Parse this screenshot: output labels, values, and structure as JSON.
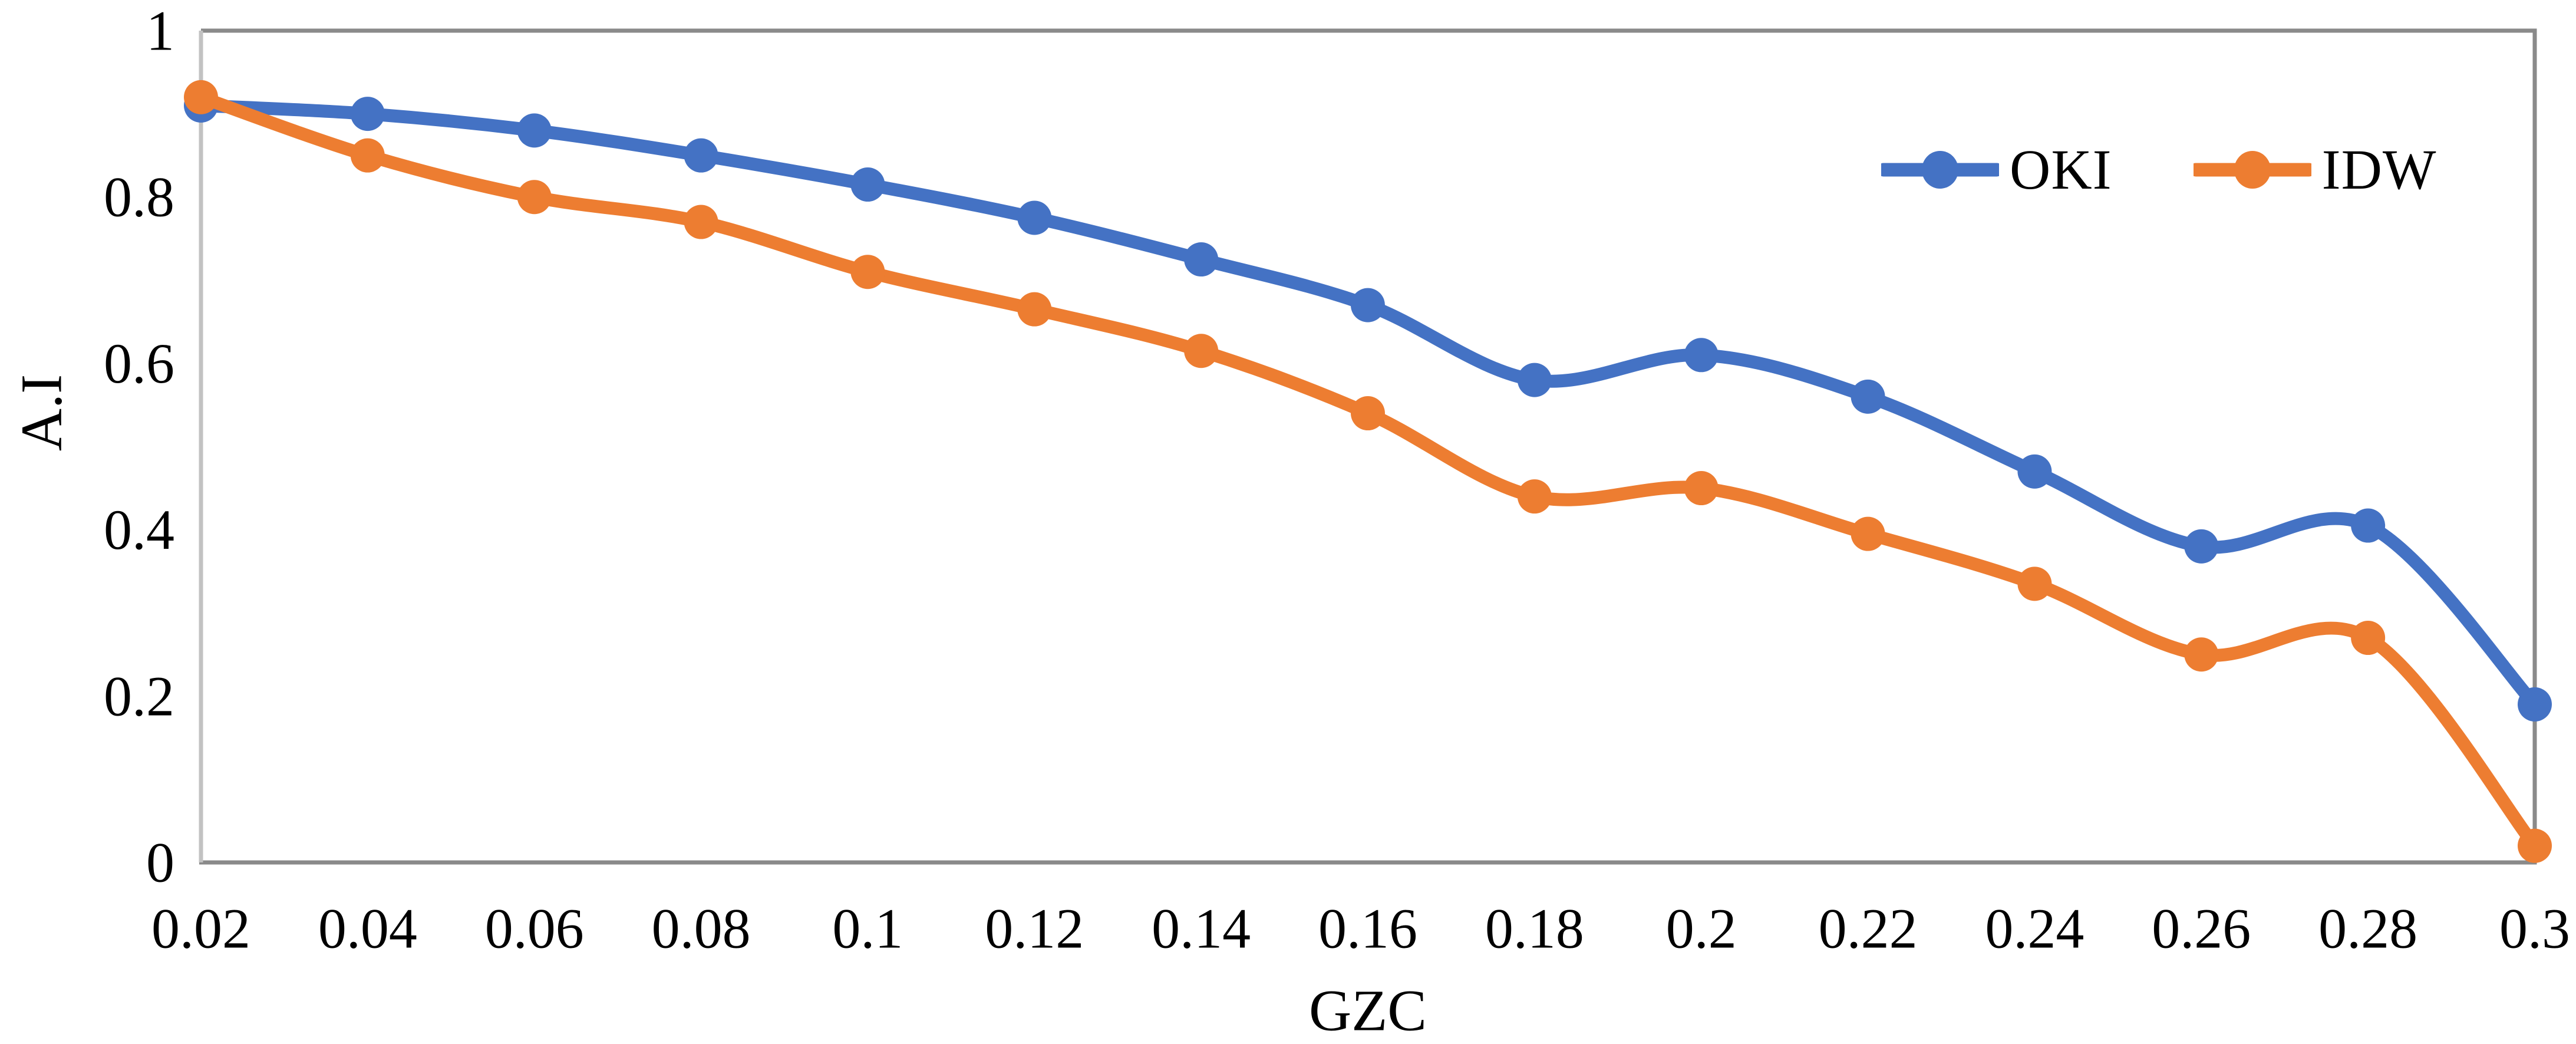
{
  "chart_data": {
    "type": "line",
    "title": "",
    "xlabel": "GZC",
    "ylabel": "A.I",
    "smooth": true,
    "grid": false,
    "legend_position": "top-right-inside",
    "categories": [
      "0.02",
      "0.04",
      "0.06",
      "0.08",
      "0.1",
      "0.12",
      "0.14",
      "0.16",
      "0.18",
      "0.2",
      "0.22",
      "0.24",
      "0.26",
      "0.28",
      "0.3"
    ],
    "x_values": [
      0.02,
      0.04,
      0.06,
      0.08,
      0.1,
      0.12,
      0.14,
      0.16,
      0.18,
      0.2,
      0.22,
      0.24,
      0.26,
      0.28,
      0.3
    ],
    "ylim": [
      0,
      1
    ],
    "yticks": [
      {
        "value": 1,
        "label": "1"
      },
      {
        "value": 0.8,
        "label": "0.8"
      },
      {
        "value": 0.6,
        "label": "0.6"
      },
      {
        "value": 0.4,
        "label": "0.4"
      },
      {
        "value": 0.2,
        "label": "0.2"
      },
      {
        "value": 0,
        "label": "0"
      }
    ],
    "series": [
      {
        "name": "OKI",
        "color": "#4472C4",
        "values": [
          0.91,
          0.9,
          0.88,
          0.85,
          0.815,
          0.775,
          0.725,
          0.67,
          0.58,
          0.61,
          0.56,
          0.47,
          0.38,
          0.405,
          0.19
        ]
      },
      {
        "name": "IDW",
        "color": "#ED7D31",
        "values": [
          0.92,
          0.85,
          0.8,
          0.77,
          0.71,
          0.665,
          0.615,
          0.54,
          0.44,
          0.45,
          0.395,
          0.335,
          0.25,
          0.27,
          0.02
        ]
      }
    ]
  },
  "frame": {
    "border_color": "#8A8A8A",
    "left_axis_color": "#C2C2C2",
    "text_color": "#000000"
  }
}
